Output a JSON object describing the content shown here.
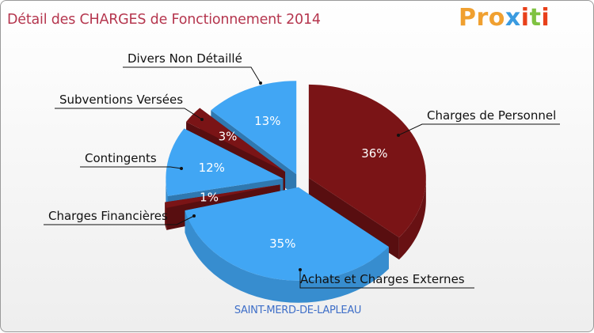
{
  "title": "Détail des CHARGES de Fonctionnement 2014",
  "logo": {
    "letters": [
      "P",
      "r",
      "o",
      "x",
      "i",
      "t",
      "i"
    ],
    "colors": [
      "#f0a030",
      "#f0a030",
      "#f0a030",
      "#3a9be0",
      "#e8401a",
      "#7fc241",
      "#e8401a"
    ]
  },
  "footer": "SAINT-MERD-DE-LAPLEAU",
  "chart_data": {
    "type": "pie",
    "title": "Détail des CHARGES de Fonctionnement 2014",
    "subtitle": "SAINT-MERD-DE-LAPLEAU",
    "slices": [
      {
        "label": "Charges de Personnel",
        "percent": 36,
        "percent_label": "36%",
        "color": "#7a1416"
      },
      {
        "label": "Achats et Charges Externes",
        "percent": 35,
        "percent_label": "35%",
        "color": "#41a6f4"
      },
      {
        "label": "Charges Financières",
        "percent": 1,
        "percent_label": "1%",
        "color": "#7a1416"
      },
      {
        "label": "Contingents",
        "percent": 12,
        "percent_label": "12%",
        "color": "#41a6f4"
      },
      {
        "label": "Subventions Versées",
        "percent": 3,
        "percent_label": "3%",
        "color": "#7a1416"
      },
      {
        "label": "Divers Non Détaillé",
        "percent": 13,
        "percent_label": "13%",
        "color": "#41a6f4"
      }
    ]
  }
}
